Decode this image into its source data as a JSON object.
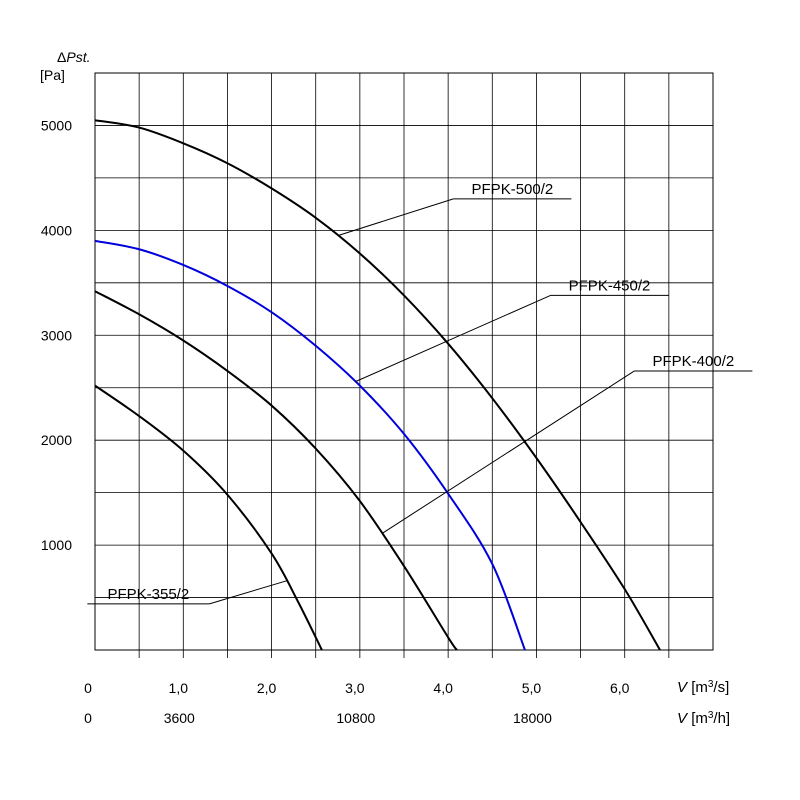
{
  "chart_data": {
    "type": "line",
    "y_axis": {
      "label": "ΔPst.",
      "unit": "[Pa]",
      "ylim": [
        0,
        5500
      ],
      "ticks": [
        1000,
        2000,
        3000,
        4000,
        5000
      ],
      "grid_step": 500
    },
    "x_axis": {
      "xlim": [
        0,
        7.0
      ],
      "grid_step": 0.5,
      "flow_label": "V",
      "flow_unit": "[m³/s]",
      "flow_ticks": [
        {
          "v": 0,
          "label": "0"
        },
        {
          "v": 1.0,
          "label": "1,0"
        },
        {
          "v": 2.0,
          "label": "2,0"
        },
        {
          "v": 3.0,
          "label": "3,0"
        },
        {
          "v": 4.0,
          "label": "4,0"
        },
        {
          "v": 5.0,
          "label": "5,0"
        },
        {
          "v": 6.0,
          "label": "6,0"
        }
      ],
      "hour_label": "V",
      "hour_unit": "[m³/h]",
      "hour_ticks": [
        {
          "v": 0,
          "label": "0"
        },
        {
          "v": 1.0,
          "label": "3600"
        },
        {
          "v": 3.0,
          "label": "10800"
        },
        {
          "v": 5.0,
          "label": "18000"
        }
      ]
    },
    "grid": true,
    "series": [
      {
        "name": "PFPK-500/2",
        "color": "#000000",
        "points": [
          [
            0,
            5050
          ],
          [
            0.5,
            4980
          ],
          [
            1.0,
            4830
          ],
          [
            1.5,
            4640
          ],
          [
            2.0,
            4400
          ],
          [
            2.5,
            4120
          ],
          [
            3.0,
            3780
          ],
          [
            3.5,
            3380
          ],
          [
            4.0,
            2920
          ],
          [
            4.5,
            2400
          ],
          [
            5.0,
            1830
          ],
          [
            5.5,
            1220
          ],
          [
            6.0,
            580
          ],
          [
            6.4,
            0
          ]
        ]
      },
      {
        "name": "PFPK-450/2",
        "color": "#0000dd",
        "points": [
          [
            0,
            3900
          ],
          [
            0.5,
            3820
          ],
          [
            1.0,
            3670
          ],
          [
            1.5,
            3470
          ],
          [
            2.0,
            3220
          ],
          [
            2.5,
            2900
          ],
          [
            3.0,
            2520
          ],
          [
            3.5,
            2060
          ],
          [
            4.0,
            1490
          ],
          [
            4.5,
            820
          ],
          [
            4.87,
            0
          ]
        ]
      },
      {
        "name": "PFPK-400/2",
        "color": "#000000",
        "points": [
          [
            0,
            3420
          ],
          [
            0.5,
            3200
          ],
          [
            1.0,
            2950
          ],
          [
            1.5,
            2660
          ],
          [
            2.0,
            2330
          ],
          [
            2.5,
            1920
          ],
          [
            3.0,
            1420
          ],
          [
            3.5,
            800
          ],
          [
            4.0,
            120
          ],
          [
            4.1,
            0
          ]
        ]
      },
      {
        "name": "PFPK-355/2",
        "color": "#000000",
        "points": [
          [
            0,
            2520
          ],
          [
            0.5,
            2230
          ],
          [
            1.0,
            1900
          ],
          [
            1.5,
            1480
          ],
          [
            2.0,
            920
          ],
          [
            2.3,
            460
          ],
          [
            2.57,
            0
          ]
        ]
      }
    ],
    "annotations": [
      {
        "text": "PFPK-500/2",
        "series": "PFPK-500/2",
        "at_x": 2.75,
        "label_pos": [
          4.15,
          4300
        ]
      },
      {
        "text": "PFPK-450/2",
        "series": "PFPK-450/2",
        "at_x": 2.95,
        "label_pos": [
          5.25,
          3380
        ]
      },
      {
        "text": "PFPK-400/2",
        "series": "PFPK-400/2",
        "at_x": 3.25,
        "label_pos": [
          6.2,
          2660
        ]
      },
      {
        "text": "PFPK-355/2",
        "series": "PFPK-355/2",
        "at_x": 2.17,
        "label_pos": [
          1.25,
          440
        ]
      }
    ]
  }
}
